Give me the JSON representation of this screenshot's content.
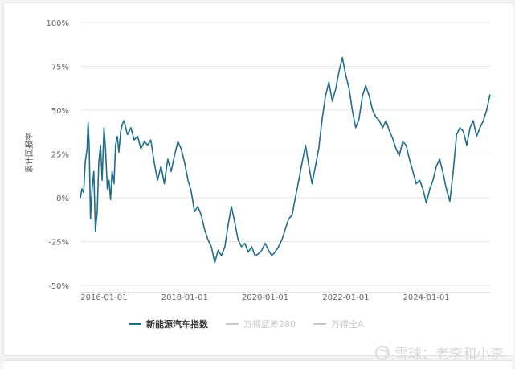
{
  "chart_data": {
    "type": "line",
    "ylabel": "累计回报率",
    "ylim": [
      -50,
      100
    ],
    "y_ticks": [
      "100%",
      "75%",
      "50%",
      "25%",
      "0%",
      "-25%",
      "-50%"
    ],
    "y_tick_values": [
      100,
      75,
      50,
      25,
      0,
      -25,
      -50
    ],
    "x_ticks": [
      "2016-01-01",
      "2018-01-01",
      "2020-01-01",
      "2022-01-01",
      "2024-01-01"
    ],
    "x_range": [
      "2015-06-01",
      "2025-08-01"
    ],
    "grid": "horizontal",
    "legend_position": "bottom",
    "series": [
      {
        "name": "新能源汽车指数",
        "color": "#1f6e8c",
        "visible": true,
        "points": [
          [
            "2015-06-01",
            0
          ],
          [
            "2015-06-15",
            5
          ],
          [
            "2015-07-01",
            3
          ],
          [
            "2015-07-15",
            20
          ],
          [
            "2015-08-01",
            28
          ],
          [
            "2015-08-10",
            43
          ],
          [
            "2015-08-20",
            30
          ],
          [
            "2015-09-01",
            -12
          ],
          [
            "2015-09-15",
            5
          ],
          [
            "2015-10-01",
            15
          ],
          [
            "2015-10-15",
            -19
          ],
          [
            "2015-11-01",
            -8
          ],
          [
            "2015-11-15",
            20
          ],
          [
            "2015-12-01",
            30
          ],
          [
            "2015-12-15",
            10
          ],
          [
            "2016-01-01",
            40
          ],
          [
            "2016-01-15",
            28
          ],
          [
            "2016-02-01",
            5
          ],
          [
            "2016-02-15",
            10
          ],
          [
            "2016-03-01",
            -1
          ],
          [
            "2016-03-15",
            15
          ],
          [
            "2016-04-01",
            8
          ],
          [
            "2016-04-15",
            30
          ],
          [
            "2016-05-01",
            35
          ],
          [
            "2016-05-15",
            26
          ],
          [
            "2016-06-01",
            38
          ],
          [
            "2016-06-15",
            42
          ],
          [
            "2016-07-01",
            44
          ],
          [
            "2016-08-01",
            36
          ],
          [
            "2016-09-01",
            40
          ],
          [
            "2016-10-01",
            33
          ],
          [
            "2016-11-01",
            35
          ],
          [
            "2016-12-01",
            28
          ],
          [
            "2017-01-01",
            32
          ],
          [
            "2017-02-01",
            30
          ],
          [
            "2017-03-01",
            33
          ],
          [
            "2017-04-01",
            20
          ],
          [
            "2017-05-01",
            10
          ],
          [
            "2017-06-01",
            18
          ],
          [
            "2017-07-01",
            8
          ],
          [
            "2017-08-01",
            22
          ],
          [
            "2017-09-01",
            15
          ],
          [
            "2017-10-01",
            24
          ],
          [
            "2017-11-01",
            32
          ],
          [
            "2017-12-01",
            28
          ],
          [
            "2018-01-01",
            20
          ],
          [
            "2018-02-01",
            10
          ],
          [
            "2018-03-01",
            4
          ],
          [
            "2018-04-01",
            -8
          ],
          [
            "2018-05-01",
            -5
          ],
          [
            "2018-06-01",
            -10
          ],
          [
            "2018-07-01",
            -18
          ],
          [
            "2018-08-01",
            -24
          ],
          [
            "2018-09-01",
            -28
          ],
          [
            "2018-10-01",
            -37
          ],
          [
            "2018-11-01",
            -30
          ],
          [
            "2018-12-01",
            -33
          ],
          [
            "2019-01-01",
            -28
          ],
          [
            "2019-02-01",
            -15
          ],
          [
            "2019-03-01",
            -5
          ],
          [
            "2019-04-01",
            -14
          ],
          [
            "2019-05-01",
            -24
          ],
          [
            "2019-06-01",
            -28
          ],
          [
            "2019-07-01",
            -26
          ],
          [
            "2019-08-01",
            -31
          ],
          [
            "2019-09-01",
            -28
          ],
          [
            "2019-10-01",
            -33
          ],
          [
            "2019-11-01",
            -32
          ],
          [
            "2019-12-01",
            -30
          ],
          [
            "2020-01-01",
            -26
          ],
          [
            "2020-02-01",
            -30
          ],
          [
            "2020-03-01",
            -33
          ],
          [
            "2020-04-01",
            -31
          ],
          [
            "2020-05-01",
            -28
          ],
          [
            "2020-06-01",
            -24
          ],
          [
            "2020-07-01",
            -18
          ],
          [
            "2020-08-01",
            -12
          ],
          [
            "2020-09-01",
            -10
          ],
          [
            "2020-10-01",
            0
          ],
          [
            "2020-11-01",
            10
          ],
          [
            "2020-12-01",
            20
          ],
          [
            "2021-01-01",
            30
          ],
          [
            "2021-02-01",
            18
          ],
          [
            "2021-03-01",
            8
          ],
          [
            "2021-04-01",
            18
          ],
          [
            "2021-05-01",
            28
          ],
          [
            "2021-06-01",
            45
          ],
          [
            "2021-07-01",
            58
          ],
          [
            "2021-08-01",
            66
          ],
          [
            "2021-09-01",
            55
          ],
          [
            "2021-10-01",
            62
          ],
          [
            "2021-11-01",
            72
          ],
          [
            "2021-12-01",
            80
          ],
          [
            "2022-01-01",
            70
          ],
          [
            "2022-02-01",
            62
          ],
          [
            "2022-03-01",
            50
          ],
          [
            "2022-04-01",
            40
          ],
          [
            "2022-05-01",
            45
          ],
          [
            "2022-06-01",
            58
          ],
          [
            "2022-07-01",
            64
          ],
          [
            "2022-08-01",
            58
          ],
          [
            "2022-09-01",
            50
          ],
          [
            "2022-10-01",
            46
          ],
          [
            "2022-11-01",
            44
          ],
          [
            "2022-12-01",
            40
          ],
          [
            "2023-01-01",
            44
          ],
          [
            "2023-02-01",
            38
          ],
          [
            "2023-03-01",
            34
          ],
          [
            "2023-04-01",
            28
          ],
          [
            "2023-05-01",
            24
          ],
          [
            "2023-06-01",
            32
          ],
          [
            "2023-07-01",
            30
          ],
          [
            "2023-08-01",
            22
          ],
          [
            "2023-09-01",
            15
          ],
          [
            "2023-10-01",
            8
          ],
          [
            "2023-11-01",
            10
          ],
          [
            "2023-12-01",
            5
          ],
          [
            "2024-01-01",
            -3
          ],
          [
            "2024-02-01",
            5
          ],
          [
            "2024-03-01",
            10
          ],
          [
            "2024-04-01",
            18
          ],
          [
            "2024-05-01",
            22
          ],
          [
            "2024-06-01",
            14
          ],
          [
            "2024-07-01",
            5
          ],
          [
            "2024-08-01",
            -2
          ],
          [
            "2024-09-01",
            15
          ],
          [
            "2024-10-01",
            36
          ],
          [
            "2024-11-01",
            40
          ],
          [
            "2024-12-01",
            38
          ],
          [
            "2025-01-01",
            30
          ],
          [
            "2025-02-01",
            40
          ],
          [
            "2025-03-01",
            44
          ],
          [
            "2025-04-01",
            35
          ],
          [
            "2025-05-01",
            40
          ],
          [
            "2025-06-01",
            44
          ],
          [
            "2025-07-01",
            50
          ],
          [
            "2025-08-01",
            59
          ]
        ]
      },
      {
        "name": "万得蓝筹280",
        "color": "#c8c8c8",
        "visible": false,
        "points": []
      },
      {
        "name": "万得全A",
        "color": "#c8c8c8",
        "visible": false,
        "points": []
      }
    ]
  },
  "watermark": {
    "text": "雪球：老李和小李"
  }
}
